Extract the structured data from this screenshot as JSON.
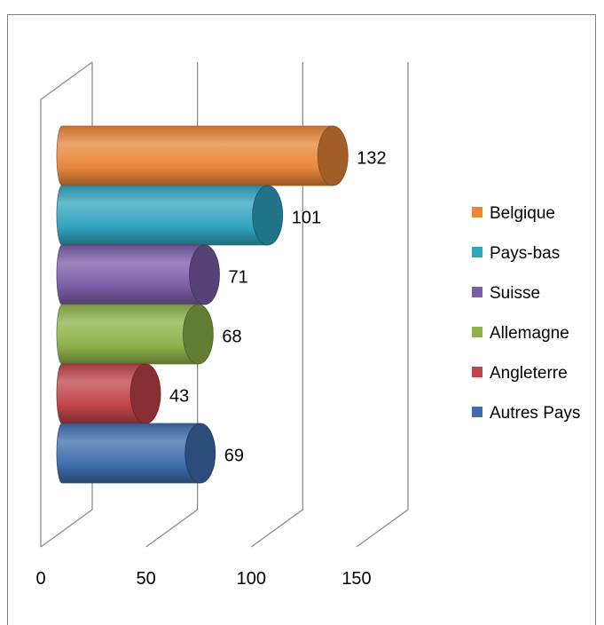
{
  "chart_data": {
    "type": "bar",
    "title": "",
    "xlabel": "",
    "ylabel": "",
    "xlim": [
      0,
      150
    ],
    "x_ticks": [
      "0",
      "50",
      "100",
      "150"
    ],
    "grid": true,
    "legend_position": "right",
    "categories": [
      "Belgique",
      "Pays-bas",
      "Suisse",
      "Allemagne",
      "Angleterre",
      "Autres Pays"
    ],
    "series": [
      {
        "name": "Belgique",
        "value": 132,
        "label": "132",
        "color": "#E8863A"
      },
      {
        "name": "Pays-bas",
        "value": 101,
        "label": "101",
        "color": "#31A4BE"
      },
      {
        "name": "Suisse",
        "value": 71,
        "label": "71",
        "color": "#7B5EA7"
      },
      {
        "name": "Allemagne",
        "value": 68,
        "label": "68",
        "color": "#8EB24A"
      },
      {
        "name": "Angleterre",
        "value": 43,
        "label": "43",
        "color": "#C0454A"
      },
      {
        "name": "Autres Pays",
        "value": 69,
        "label": "69",
        "color": "#3F6DAD"
      }
    ]
  }
}
